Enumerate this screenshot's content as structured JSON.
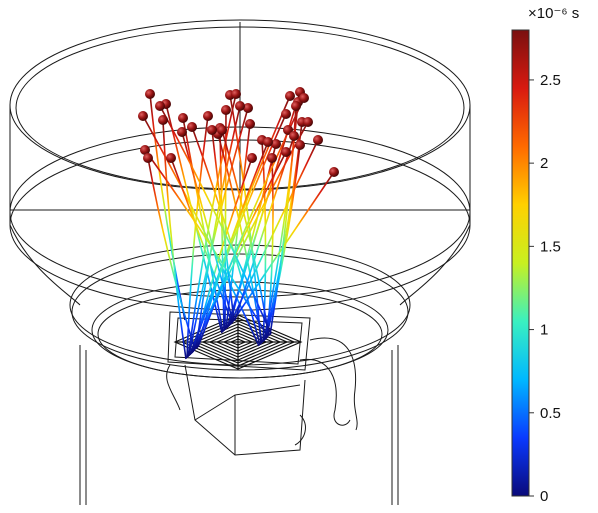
{
  "colorbar": {
    "unit": "×10⁻⁶ s",
    "ticks": [
      "0",
      "0.5",
      "1",
      "1.5",
      "2",
      "2.5"
    ],
    "tick_values": [
      0,
      0.5,
      1,
      1.5,
      2,
      2.5
    ],
    "max_value": 2.8,
    "min_value": 0,
    "colormap": [
      "#0a0a7a",
      "#0a3aff",
      "#00b8ff",
      "#3af0c0",
      "#c8f020",
      "#ffd000",
      "#ff6a00",
      "#d81a10",
      "#7a1010"
    ]
  },
  "scene": {
    "particle_color": "#8a1010",
    "wire_color": "#1a1a1a",
    "particle_count": 41
  }
}
